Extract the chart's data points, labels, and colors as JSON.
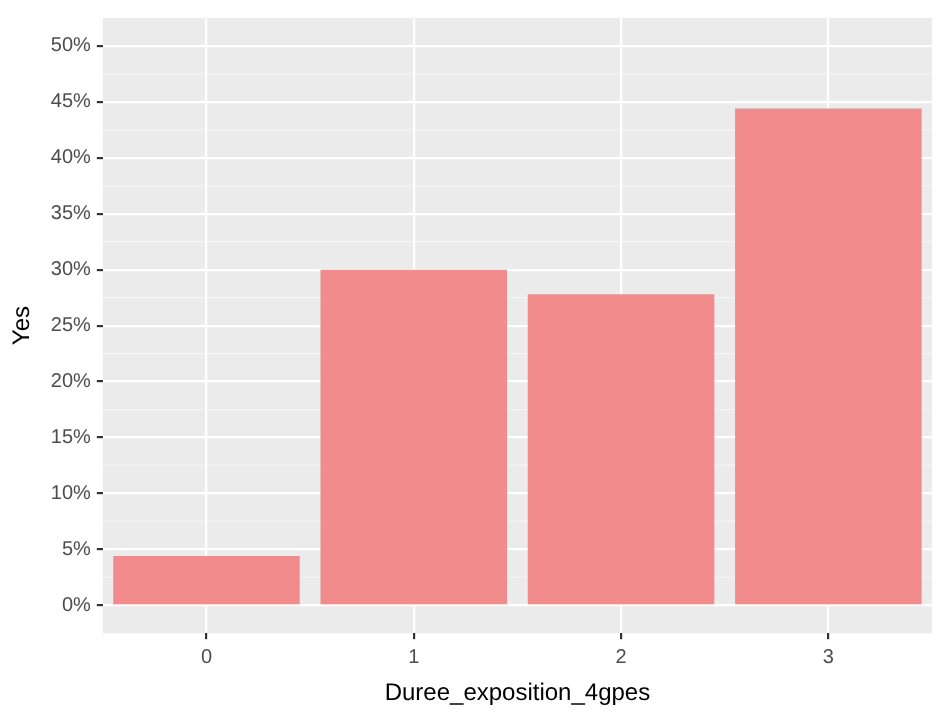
{
  "chart_data": {
    "type": "bar",
    "xlabel": "Duree_exposition_4gpes",
    "ylabel": "Yes",
    "categories": [
      "0",
      "1",
      "2",
      "3"
    ],
    "values": [
      4.4,
      30.0,
      27.8,
      44.4
    ],
    "color": "#f28b8b",
    "ylim": [
      -2.5,
      52.5
    ],
    "yticks": [
      {
        "value": 0,
        "label": "0%"
      },
      {
        "value": 5,
        "label": "5%"
      },
      {
        "value": 10,
        "label": "10%"
      },
      {
        "value": 15,
        "label": "15%"
      },
      {
        "value": 20,
        "label": "20%"
      },
      {
        "value": 25,
        "label": "25%"
      },
      {
        "value": 30,
        "label": "30%"
      },
      {
        "value": 35,
        "label": "35%"
      },
      {
        "value": 40,
        "label": "40%"
      },
      {
        "value": 45,
        "label": "45%"
      },
      {
        "value": 50,
        "label": "50%"
      }
    ],
    "grid": true,
    "legend": false
  }
}
